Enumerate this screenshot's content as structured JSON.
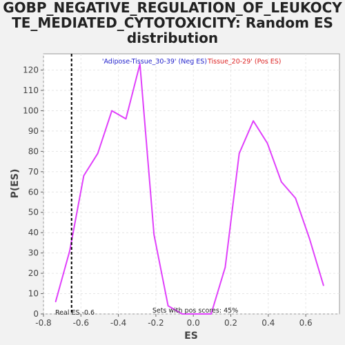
{
  "chart_data": {
    "type": "line",
    "title_lines": [
      "GOBP_NEGATIVE_REGULATION_OF_LEUKOCY",
      "TE_MEDIATED_CYTOTOXICITY: Random ES",
      "distribution"
    ],
    "xlabel": "ES",
    "ylabel": "P(ES)",
    "xlim": [
      -0.8,
      0.78
    ],
    "ylim": [
      0,
      128
    ],
    "x_ticks": [
      -0.8,
      -0.6,
      -0.4,
      -0.2,
      0.0,
      0.2,
      0.4,
      0.6
    ],
    "x_tick_labels": [
      "-0.8",
      "-0.6",
      "-0.4",
      "-0.2",
      "0.0",
      "0.2",
      "0.4",
      "0.6"
    ],
    "y_ticks": [
      0,
      10,
      20,
      30,
      40,
      50,
      60,
      70,
      80,
      90,
      100,
      110,
      120
    ],
    "y_tick_labels": [
      "0",
      "10",
      "20",
      "30",
      "40",
      "50",
      "60",
      "70",
      "80",
      "90",
      "100",
      "110",
      "120"
    ],
    "grid": true,
    "series": [
      {
        "color": "#e040fb",
        "x": [
          -0.735,
          -0.66,
          -0.585,
          -0.51,
          -0.435,
          -0.36,
          -0.285,
          -0.21,
          -0.135,
          -0.06,
          0.02,
          0.095,
          0.17,
          0.245,
          0.32,
          0.395,
          0.47,
          0.545,
          0.62,
          0.695
        ],
        "y": [
          6,
          31,
          68,
          79,
          100,
          96,
          123,
          39,
          4,
          0,
          0,
          0,
          23,
          79,
          95,
          84,
          65,
          57,
          37,
          14
        ]
      }
    ],
    "real_es": {
      "x": -0.65,
      "label": "Real ES -0.6"
    },
    "annotations": {
      "neg_label": "'Adipose-Tissue_30-39' (Neg ES)",
      "neg_color": "#2222cc",
      "pos_label": "Tissue_20-29' (Pos ES)",
      "pos_color": "#dd2222",
      "pos_scores": "Sets with pos scores: 45%"
    }
  }
}
